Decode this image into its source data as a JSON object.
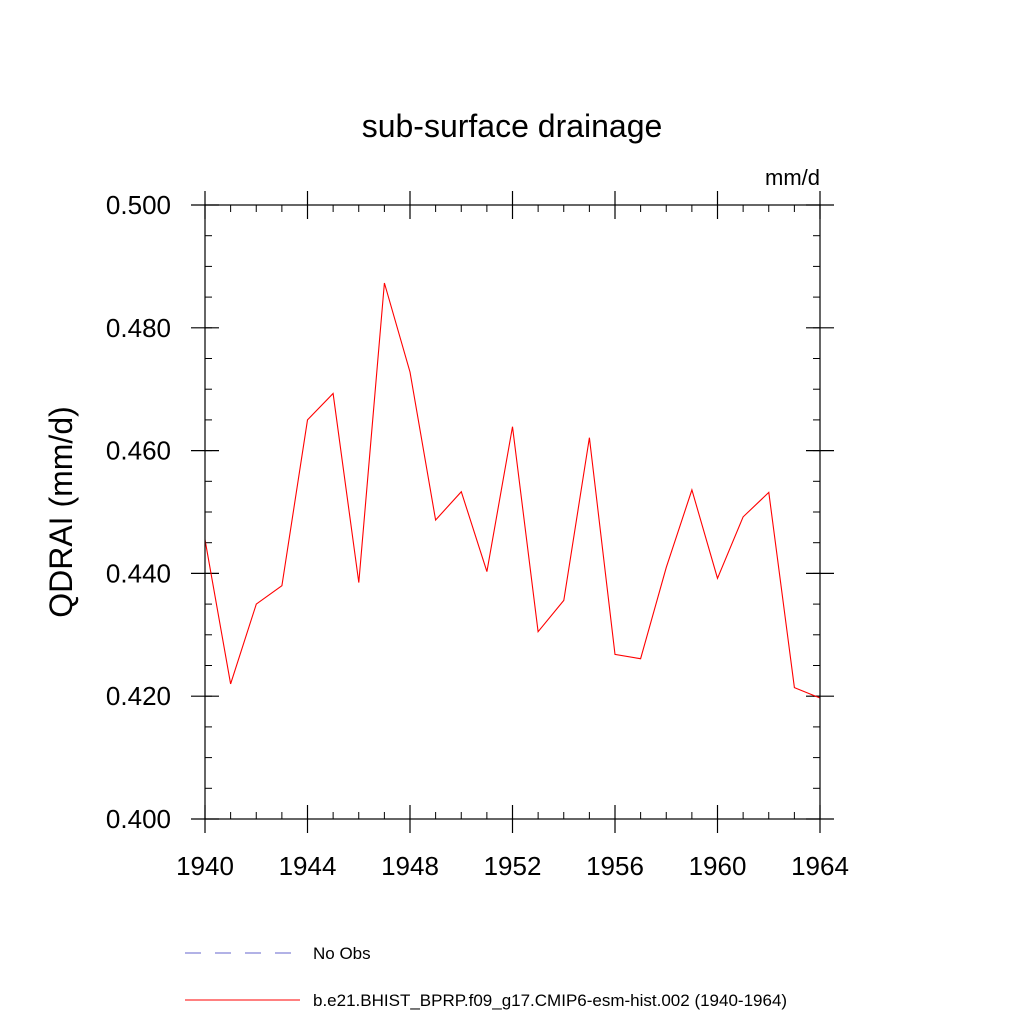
{
  "chart_data": {
    "type": "line",
    "title": "sub-surface drainage",
    "units_label": "mm/d",
    "ylabel": "QDRAI  (mm/d)",
    "xlabel": "",
    "xlim": [
      1940,
      1964
    ],
    "ylim": [
      0.4,
      0.5
    ],
    "x_ticks": [
      1940,
      1944,
      1948,
      1952,
      1956,
      1960,
      1964
    ],
    "x_tick_labels": [
      "1940",
      "1944",
      "1948",
      "1952",
      "1956",
      "1960",
      "1964"
    ],
    "y_ticks": [
      0.4,
      0.42,
      0.44,
      0.46,
      0.48,
      0.5
    ],
    "y_tick_labels": [
      "0.400",
      "0.420",
      "0.440",
      "0.460",
      "0.480",
      "0.500"
    ],
    "x_minor_step": 1,
    "y_minor_step": 0.005,
    "grid": false,
    "legend_position": "bottom-left",
    "series": [
      {
        "name": "b.e21.BHIST_BPRP.f09_g17.CMIP6-esm-hist.002 (1940-1964)",
        "color": "#ff0000",
        "style": "solid",
        "x": [
          1940,
          1941,
          1942,
          1943,
          1944,
          1945,
          1946,
          1947,
          1948,
          1949,
          1950,
          1951,
          1952,
          1953,
          1954,
          1955,
          1956,
          1957,
          1958,
          1959,
          1960,
          1961,
          1962,
          1963,
          1964
        ],
        "values": [
          0.4455,
          0.422,
          0.435,
          0.438,
          0.465,
          0.4693,
          0.4385,
          0.4873,
          0.4728,
          0.4487,
          0.4533,
          0.4403,
          0.4639,
          0.4305,
          0.4356,
          0.4621,
          0.4268,
          0.4261,
          0.441,
          0.4536,
          0.4392,
          0.4492,
          0.4532,
          0.4214,
          0.4197
        ]
      }
    ],
    "legend_entries": [
      {
        "label": "No Obs",
        "color": "#6666cc",
        "style": "dashed"
      },
      {
        "label": "b.e21.BHIST_BPRP.f09_g17.CMIP6-esm-hist.002 (1940-1964)",
        "color": "#ff0000",
        "style": "solid"
      }
    ]
  }
}
